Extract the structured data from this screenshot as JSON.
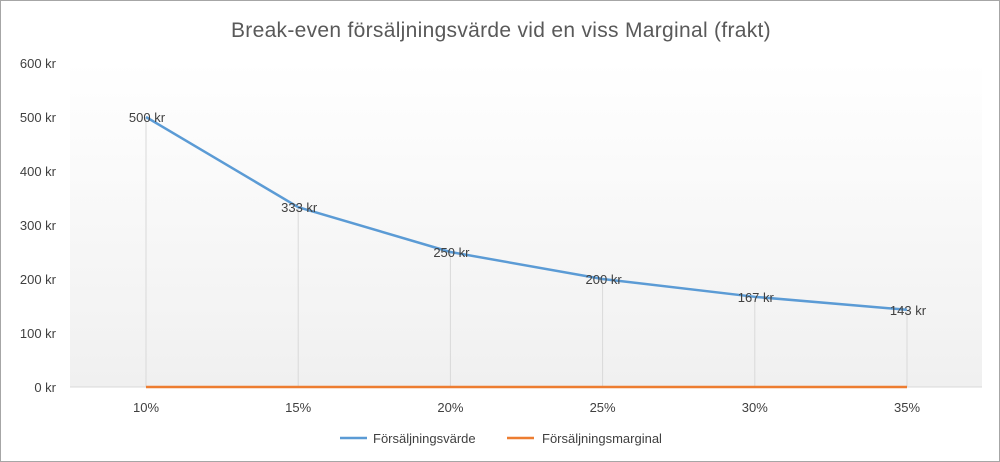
{
  "chart_data": {
    "type": "line",
    "title": "Break-even försäljningsvärde vid en viss Marginal (frakt)",
    "categories": [
      "10%",
      "15%",
      "20%",
      "25%",
      "30%",
      "35%"
    ],
    "series": [
      {
        "name": "Försäljningsvärde",
        "values": [
          500,
          333,
          250,
          200,
          167,
          143
        ],
        "data_labels": [
          "500 kr",
          "333 kr",
          "250 kr",
          "200 kr",
          "167 kr",
          "143 kr"
        ],
        "color": "#5b9bd5"
      },
      {
        "name": "Försäljningsmarginal",
        "values": [
          0,
          0,
          0,
          0,
          0,
          0
        ],
        "color": "#ed7d31"
      }
    ],
    "y_ticks": [
      "0 kr",
      "100 kr",
      "200 kr",
      "300 kr",
      "400 kr",
      "500 kr",
      "600 kr"
    ],
    "ylim": [
      0,
      600
    ],
    "drop_lines": true,
    "gridlines": false,
    "legend_position": "bottom"
  }
}
